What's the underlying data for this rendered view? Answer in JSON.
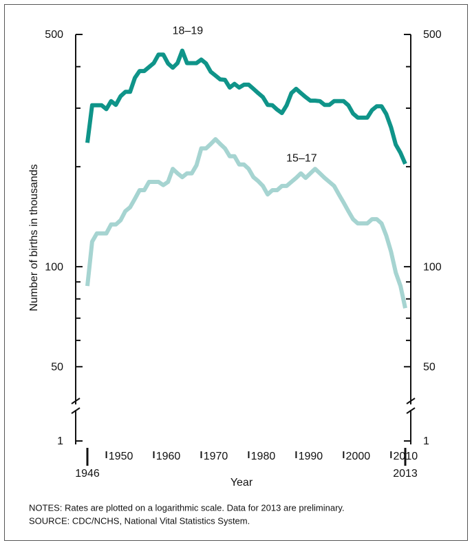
{
  "chart_data": {
    "type": "line",
    "y_label": "Number of births in thousands",
    "x_label": "Year",
    "notes": "NOTES: Rates are plotted on a logarithmic scale. Data for 2013 are preliminary.",
    "source": "SOURCE: CDC/NCHS, National Vital Statistics System.",
    "log_scale": true,
    "xlim": [
      1946,
      2013
    ],
    "xticks": [
      1946,
      1950,
      1960,
      1970,
      1980,
      1990,
      2000,
      2010,
      2013
    ],
    "ylim": [
      40,
      500
    ],
    "yticks": [
      50,
      100,
      500
    ],
    "yminor": [
      60,
      70,
      80,
      90,
      200,
      300,
      400
    ],
    "axis_break_tick": 1,
    "x": [
      1946,
      1947,
      1948,
      1949,
      1950,
      1951,
      1952,
      1953,
      1954,
      1955,
      1956,
      1957,
      1958,
      1959,
      1960,
      1961,
      1962,
      1963,
      1964,
      1965,
      1966,
      1967,
      1968,
      1969,
      1970,
      1971,
      1972,
      1973,
      1974,
      1975,
      1976,
      1977,
      1978,
      1979,
      1980,
      1981,
      1982,
      1983,
      1984,
      1985,
      1986,
      1987,
      1988,
      1989,
      1990,
      1991,
      1992,
      1993,
      1994,
      1995,
      1996,
      1997,
      1998,
      1999,
      2000,
      2001,
      2002,
      2003,
      2004,
      2005,
      2006,
      2007,
      2008,
      2009,
      2010,
      2011,
      2012,
      2013
    ],
    "series": [
      {
        "name": "18–19",
        "color": "#0f9489",
        "label_at": [
          1966,
          1966
        ],
        "values": [
          236,
          306,
          306,
          306,
          298,
          315,
          307,
          326,
          336,
          336,
          370,
          388,
          388,
          399,
          410,
          435,
          435,
          409,
          397,
          410,
          447,
          410,
          410,
          410,
          420,
          409,
          386,
          376,
          366,
          365,
          346,
          355,
          346,
          353,
          353,
          343,
          333,
          324,
          307,
          306,
          297,
          290,
          306,
          333,
          343,
          333,
          324,
          316,
          316,
          315,
          307,
          307,
          315,
          315,
          315,
          306,
          289,
          281,
          281,
          281,
          296,
          304,
          304,
          288,
          263,
          233,
          220,
          204
        ]
      },
      {
        "name": "15–17",
        "color": "#a6d4d1",
        "label_at": [
          1990,
          1990
        ],
        "values": [
          87.5,
          119,
          126,
          126,
          126,
          134,
          134,
          138,
          147,
          151,
          160,
          170,
          170,
          180,
          180,
          180,
          176,
          180,
          197,
          191,
          186,
          191,
          191,
          202,
          227,
          227,
          234,
          242,
          234,
          227,
          215,
          215,
          203,
          203,
          197,
          186,
          181,
          175,
          165,
          170,
          170,
          175,
          175,
          180,
          185,
          191,
          185,
          191,
          197,
          191,
          185,
          180,
          175,
          165,
          156,
          147,
          139,
          135,
          135,
          135,
          139,
          139,
          135,
          124,
          111,
          96,
          87.5,
          75
        ]
      }
    ]
  }
}
